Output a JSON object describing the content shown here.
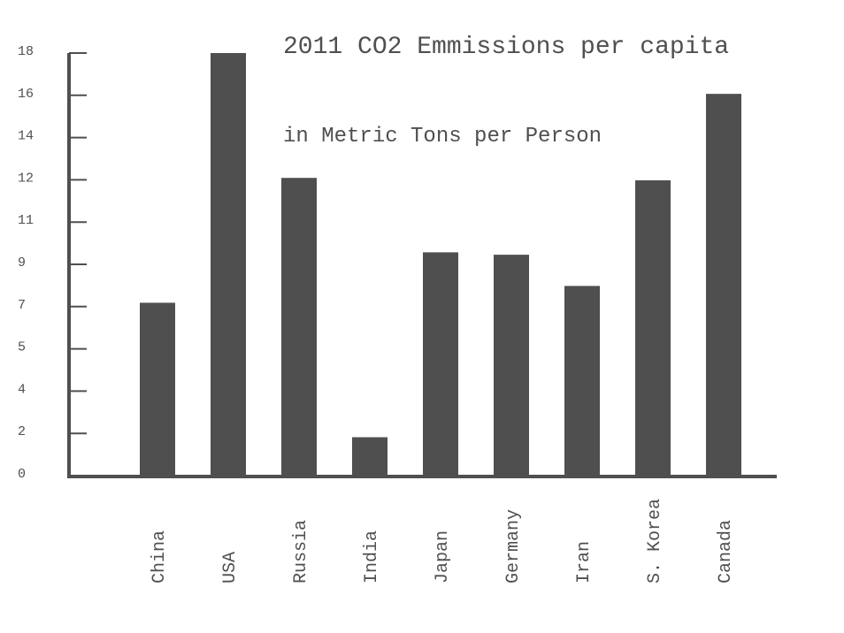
{
  "chart_data": {
    "type": "bar",
    "title": "2011 CO2 Emmissions per capita",
    "subtitle": "in Metric Tons per Person",
    "xlabel": "",
    "ylabel": "",
    "categories": [
      "China",
      "USA",
      "Russia",
      "India",
      "Japan",
      "Germany",
      "Iran",
      "S. Korea",
      "Canada"
    ],
    "values": [
      7.2,
      17.6,
      12.4,
      1.6,
      9.3,
      9.2,
      7.9,
      12.3,
      15.9
    ],
    "ylim": [
      0,
      17.6
    ],
    "y_tick_labels": [
      "0",
      "2",
      "4",
      "5",
      "7",
      "9",
      "11",
      "12",
      "14",
      "16",
      "18"
    ],
    "grid": false,
    "legend": "none",
    "bar_color": "#4f4f4f",
    "axis_color": "#4f4f4f"
  }
}
